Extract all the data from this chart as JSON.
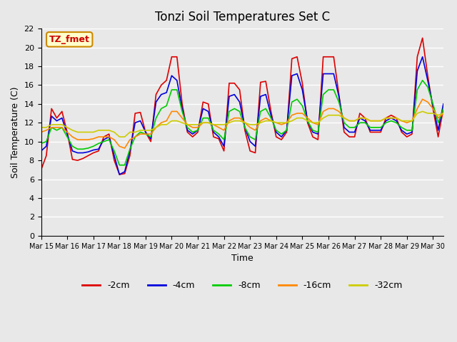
{
  "title": "Tonzi Soil Temperatures Set C",
  "xlabel": "Time",
  "ylabel": "Soil Temperature (C)",
  "annotation": "TZ_fmet",
  "annotation_color": "#cc0000",
  "annotation_bg": "#ffffcc",
  "background_color": "#e8e8e8",
  "plot_bg": "#e8e8e8",
  "ylim": [
    0,
    22
  ],
  "yticks": [
    0,
    2,
    4,
    6,
    8,
    10,
    12,
    14,
    16,
    18,
    20,
    22
  ],
  "x_start": 15,
  "x_end": 30,
  "legend": [
    "-2cm",
    "-4cm",
    "-8cm",
    "-16cm",
    "-32cm"
  ],
  "colors": [
    "#dd0000",
    "#0000dd",
    "#00cc00",
    "#ff8800",
    "#cccc00"
  ],
  "series": {
    "neg2cm": [
      7.0,
      8.5,
      13.5,
      12.5,
      13.2,
      11.0,
      8.1,
      8.0,
      8.2,
      8.5,
      8.8,
      9.0,
      10.5,
      10.8,
      8.0,
      6.5,
      6.6,
      8.5,
      13.0,
      13.1,
      11.0,
      10.0,
      15.0,
      16.0,
      16.5,
      19.0,
      19.0,
      14.0,
      11.0,
      10.5,
      11.0,
      14.2,
      14.0,
      10.5,
      10.3,
      9.0,
      16.2,
      16.2,
      15.5,
      11.2,
      9.0,
      8.8,
      16.3,
      16.4,
      13.2,
      10.5,
      10.2,
      11.0,
      18.8,
      19.0,
      16.2,
      12.0,
      10.5,
      10.2,
      19.0,
      19.0,
      19.0,
      15.0,
      11.0,
      10.5,
      10.5,
      13.0,
      12.5,
      11.0,
      11.0,
      11.0,
      12.5,
      12.8,
      12.5,
      11.0,
      10.5,
      10.8,
      19.0,
      21.0,
      17.0,
      13.5,
      10.5,
      13.5
    ],
    "neg4cm": [
      9.0,
      9.5,
      12.7,
      12.2,
      12.5,
      10.8,
      9.0,
      8.8,
      8.8,
      8.9,
      9.1,
      9.2,
      10.2,
      10.5,
      8.5,
      6.5,
      6.8,
      9.0,
      12.0,
      12.2,
      11.0,
      10.3,
      14.2,
      15.0,
      15.2,
      17.0,
      16.5,
      13.5,
      11.2,
      10.8,
      11.2,
      13.5,
      13.2,
      11.0,
      10.5,
      9.5,
      14.8,
      15.0,
      14.2,
      11.5,
      10.0,
      9.5,
      14.8,
      15.0,
      12.8,
      11.0,
      10.5,
      11.2,
      17.0,
      17.2,
      15.5,
      12.2,
      11.0,
      10.8,
      17.2,
      17.2,
      17.2,
      14.8,
      11.5,
      11.0,
      11.0,
      12.5,
      12.2,
      11.2,
      11.2,
      11.2,
      12.2,
      12.5,
      12.2,
      11.2,
      10.8,
      11.0,
      17.5,
      19.0,
      16.5,
      13.8,
      11.2,
      14.0
    ],
    "neg8cm": [
      9.8,
      10.0,
      11.5,
      11.2,
      11.5,
      10.5,
      9.5,
      9.2,
      9.2,
      9.3,
      9.5,
      9.8,
      10.0,
      10.2,
      9.0,
      7.5,
      7.5,
      9.2,
      10.5,
      11.0,
      10.8,
      10.5,
      12.5,
      13.5,
      13.8,
      15.5,
      15.5,
      13.2,
      11.5,
      11.0,
      11.2,
      12.5,
      12.5,
      11.2,
      10.8,
      10.2,
      13.2,
      13.5,
      13.2,
      11.5,
      10.5,
      10.2,
      13.2,
      13.5,
      12.5,
      11.2,
      10.8,
      11.2,
      14.2,
      14.5,
      13.8,
      12.2,
      11.2,
      11.0,
      15.0,
      15.5,
      15.5,
      14.2,
      12.0,
      11.5,
      11.5,
      12.0,
      12.0,
      11.5,
      11.5,
      11.5,
      12.0,
      12.2,
      12.0,
      11.5,
      11.2,
      11.2,
      15.5,
      16.5,
      15.8,
      14.0,
      12.0,
      13.5
    ],
    "neg16cm": [
      11.0,
      11.2,
      11.5,
      11.5,
      11.5,
      11.0,
      10.5,
      10.2,
      10.2,
      10.2,
      10.3,
      10.5,
      10.5,
      10.5,
      10.2,
      9.5,
      9.3,
      10.2,
      10.5,
      10.8,
      10.8,
      10.8,
      11.5,
      12.0,
      12.2,
      13.2,
      13.2,
      12.5,
      11.8,
      11.5,
      11.5,
      12.0,
      12.0,
      11.8,
      11.5,
      11.2,
      12.2,
      12.5,
      12.5,
      12.0,
      11.5,
      11.2,
      12.2,
      12.5,
      12.2,
      12.0,
      11.8,
      12.0,
      12.8,
      13.0,
      13.0,
      12.5,
      12.0,
      11.8,
      13.2,
      13.5,
      13.5,
      13.2,
      12.5,
      12.2,
      12.2,
      12.5,
      12.5,
      12.2,
      12.2,
      12.2,
      12.5,
      12.5,
      12.5,
      12.2,
      12.0,
      12.2,
      13.5,
      14.5,
      14.2,
      13.5,
      12.5,
      13.0
    ],
    "neg32cm": [
      11.5,
      11.5,
      11.8,
      11.8,
      11.8,
      11.5,
      11.2,
      11.0,
      11.0,
      11.0,
      11.0,
      11.2,
      11.2,
      11.2,
      11.0,
      10.5,
      10.5,
      11.0,
      11.0,
      11.2,
      11.2,
      11.2,
      11.5,
      11.8,
      11.8,
      12.2,
      12.2,
      12.0,
      11.8,
      11.8,
      11.8,
      12.0,
      12.0,
      11.8,
      11.8,
      11.8,
      12.0,
      12.2,
      12.2,
      12.0,
      11.8,
      11.8,
      12.0,
      12.2,
      12.2,
      12.0,
      12.0,
      12.0,
      12.2,
      12.5,
      12.5,
      12.2,
      12.0,
      12.0,
      12.5,
      12.8,
      12.8,
      12.8,
      12.5,
      12.2,
      12.2,
      12.5,
      12.5,
      12.2,
      12.2,
      12.2,
      12.5,
      12.5,
      12.5,
      12.2,
      12.2,
      12.2,
      13.0,
      13.2,
      13.0,
      13.0,
      12.8,
      13.0
    ]
  },
  "xtick_labels": [
    "Mar 15",
    "Mar 16",
    "Mar 17",
    "Mar 18",
    "Mar 19",
    "Mar 20",
    "Mar 21",
    "Mar 22",
    "Mar 23",
    "Mar 24",
    "Mar 25",
    "Mar 26",
    "Mar 27",
    "Mar 28",
    "Mar 29",
    "Mar 30"
  ],
  "xtick_positions": [
    0,
    5,
    10,
    15,
    20,
    25,
    30,
    35,
    40,
    45,
    50,
    55,
    60,
    65,
    70,
    75
  ]
}
